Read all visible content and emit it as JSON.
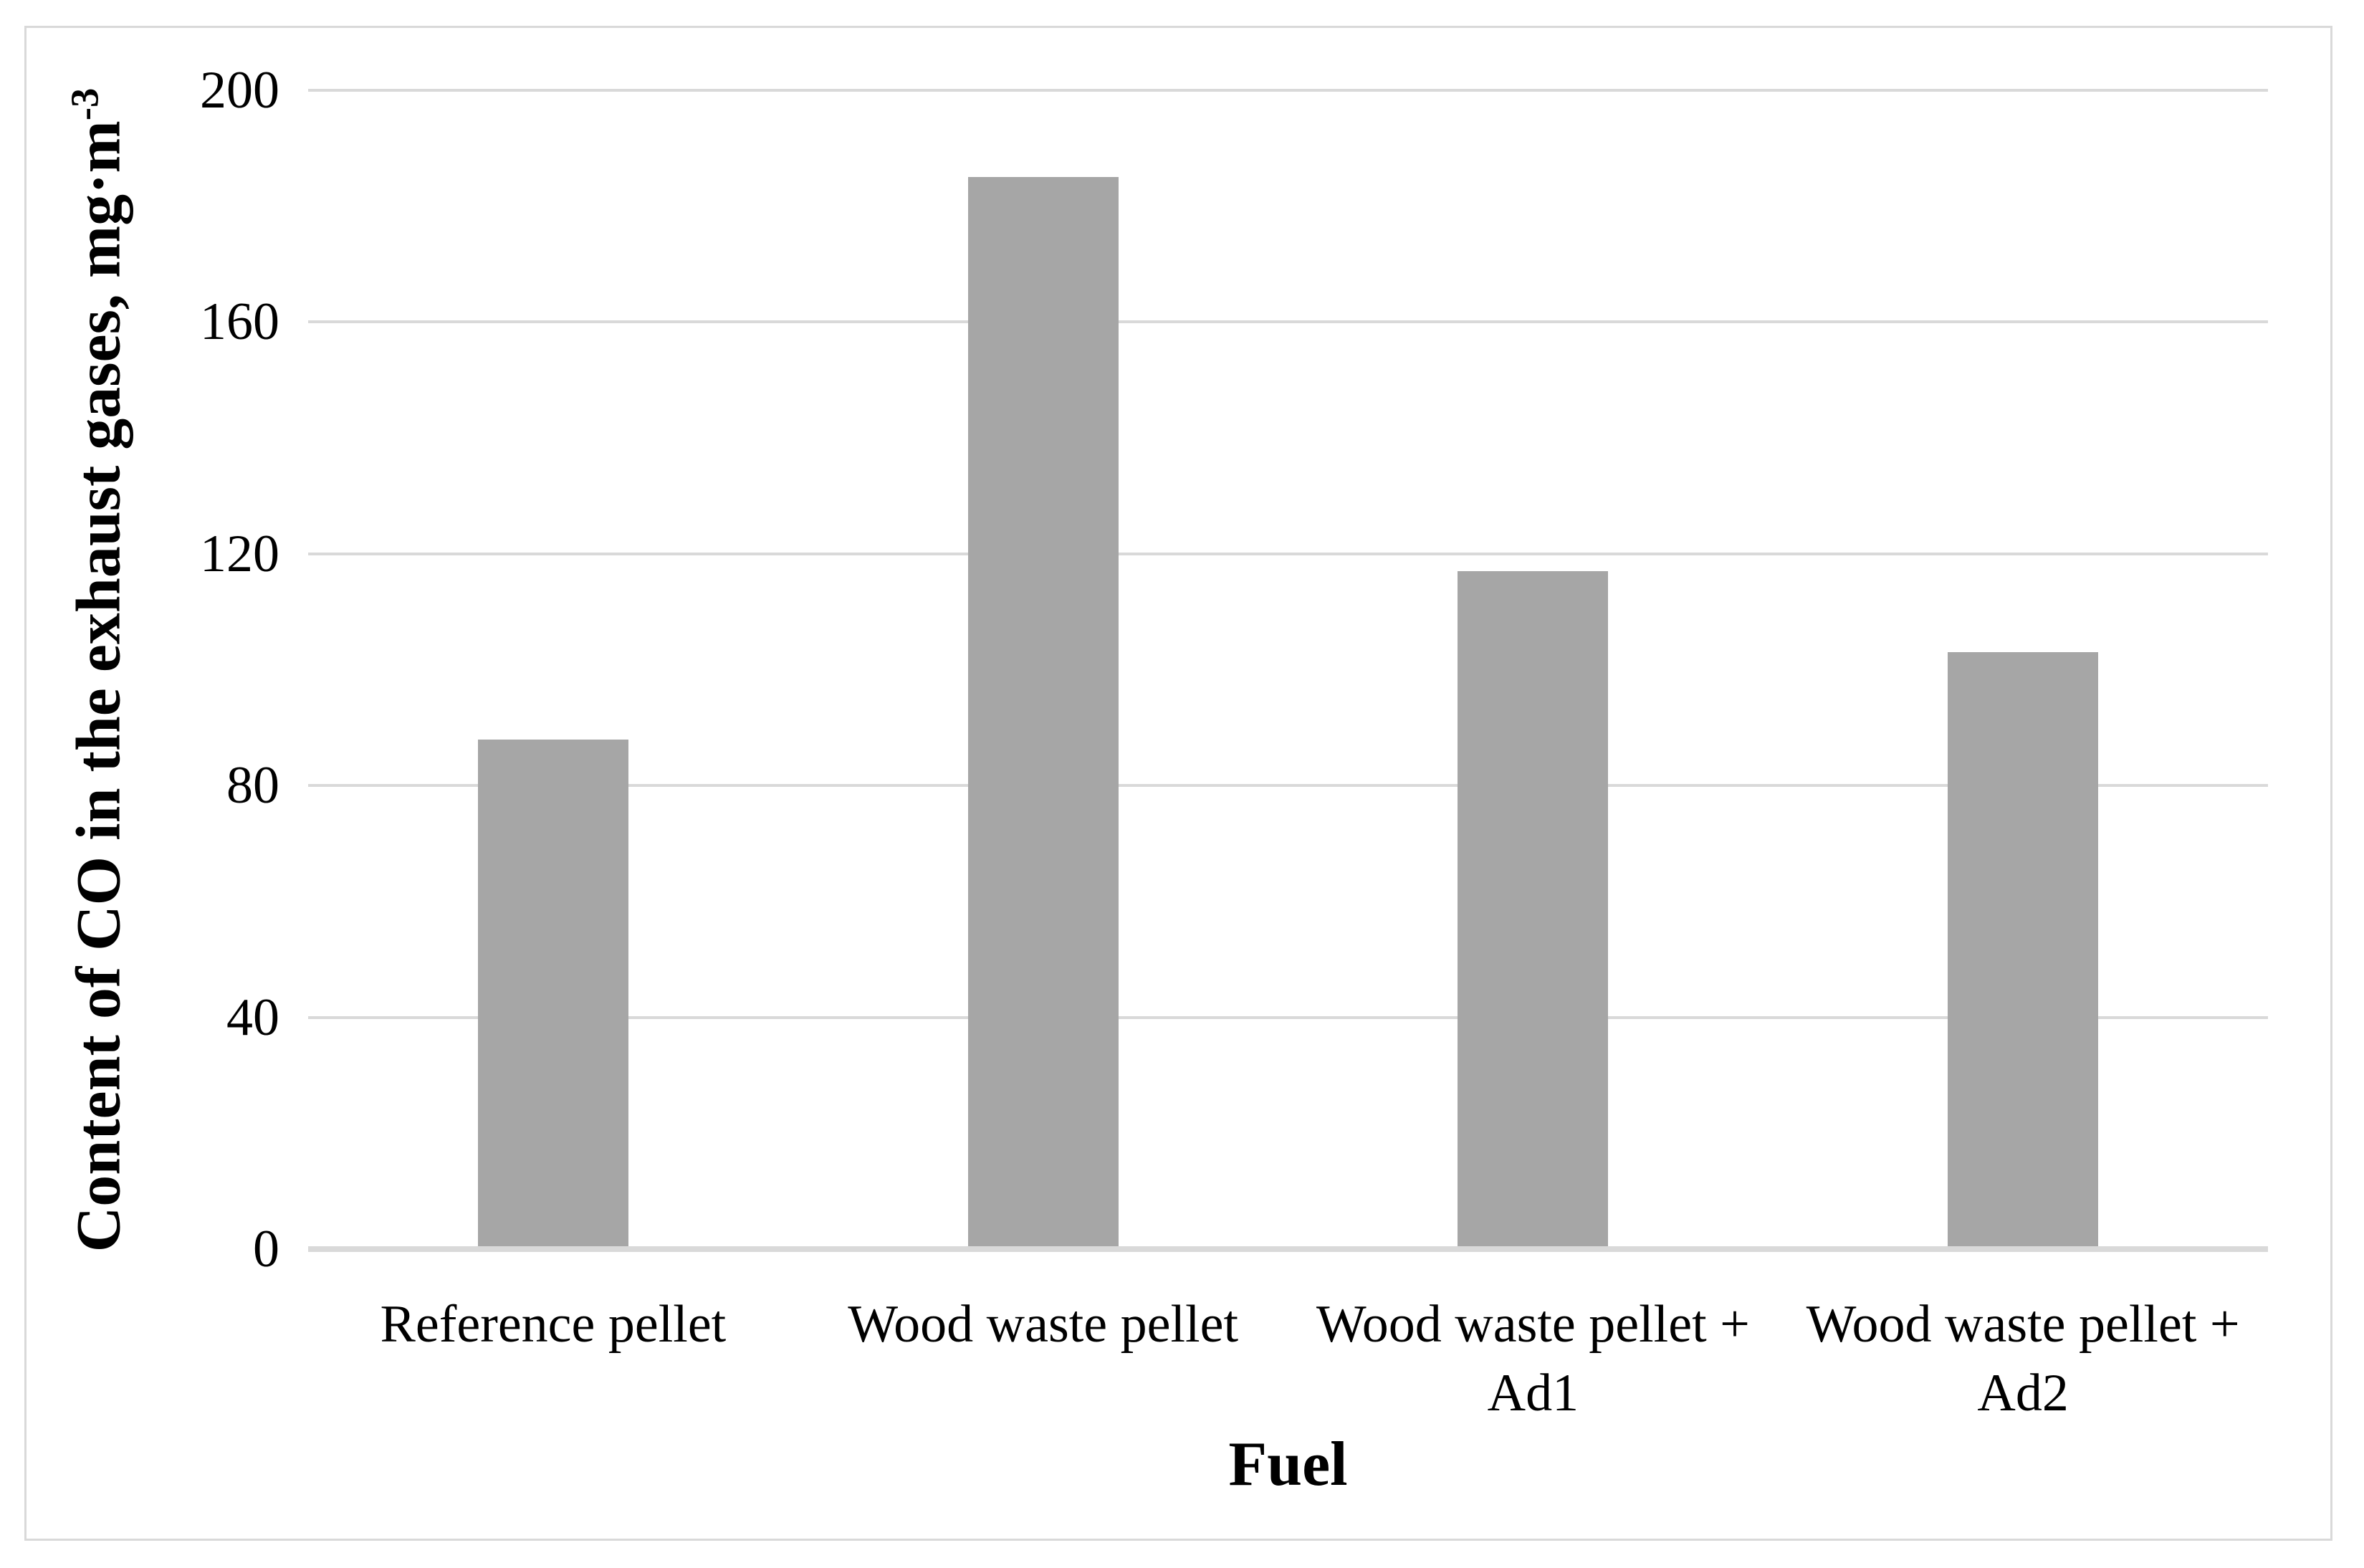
{
  "chart_data": {
    "type": "bar",
    "title": "",
    "categories": [
      "Reference pellet",
      "Wood waste pellet",
      "Wood waste pellet + Ad1",
      "Wood waste pellet + Ad2"
    ],
    "values": [
      88,
      185,
      117,
      103
    ],
    "xlabel": "Fuel",
    "ylabel": "Content of CO in the exhaust gases, mg·m⁻³",
    "ylabel_base": "Content of CO in the exhaust gases, mg·m",
    "ylabel_superscript": "-3",
    "ylim": [
      0,
      200
    ],
    "yticks": [
      0,
      40,
      80,
      120,
      160,
      200
    ],
    "grid": true,
    "legend": false,
    "bar_color": "#a6a6a6",
    "gridline_color": "#d9d9d9",
    "axis_line_color": "#d9d9d9",
    "frame_color": "#d9d9d9",
    "text_color": "#000000"
  }
}
